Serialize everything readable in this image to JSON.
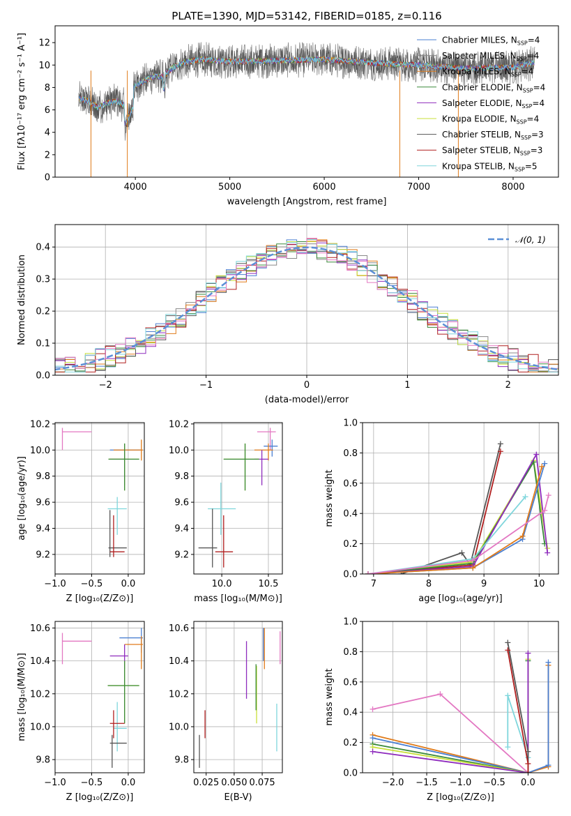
{
  "figure_title": "PLATE=1390, MJD=53142, FIBERID=0185, z=0.116",
  "colors": {
    "Chabrier MILES": "#4a7fd1",
    "Salpeter MILES": "#888888",
    "Kroupa MILES": "#e07b1a",
    "Chabrier ELODIE": "#3a8a3a",
    "Salpeter ELODIE": "#8e2bbd",
    "Kroupa ELODIE": "#c8df3a",
    "Chabrier STELIB": "#555555",
    "Salpeter STELIB": "#b01e1e",
    "Kroupa STELIB": "#7fd6dc",
    "pink": "#e377c2",
    "normal": "#5b8fd6"
  },
  "chart_data": [
    {
      "type": "line",
      "id": "spectrum",
      "title": "PLATE=1390, MJD=53142, FIBERID=0185, z=0.116",
      "xlabel": "wavelength [Angstrom, rest frame]",
      "ylabel": "Flux [fλ10⁻¹⁷ erg cm⁻² s⁻¹ A⁻¹]",
      "xlim": [
        3150,
        8480
      ],
      "ylim": [
        0,
        13.5
      ],
      "xticks": [
        4000,
        5000,
        6000,
        7000,
        8000
      ],
      "yticks": [
        0,
        2,
        4,
        6,
        8,
        10,
        12
      ],
      "grid": false,
      "legend": "right",
      "legend_entries": [
        {
          "name": "Chabrier MILES",
          "nssp": "4"
        },
        {
          "name": "Salpeter MILES",
          "nssp": "4"
        },
        {
          "name": "Kroupa MILES",
          "nssp": "4"
        },
        {
          "name": "Chabrier ELODIE",
          "nssp": "4"
        },
        {
          "name": "Salpeter ELODIE",
          "nssp": "4"
        },
        {
          "name": "Kroupa ELODIE",
          "nssp": "4"
        },
        {
          "name": "Chabrier STELIB",
          "nssp": "3"
        },
        {
          "name": "Salpeter STELIB",
          "nssp": "3"
        },
        {
          "name": "Kroupa STELIB",
          "nssp": "5"
        }
      ],
      "continuum": {
        "x": [
          3400,
          3500,
          3600,
          3700,
          3800,
          3900,
          4000,
          4100,
          4200,
          4300,
          4400,
          4500,
          4700,
          5000,
          5500,
          6000,
          6500,
          7000,
          7500,
          8000,
          8200
        ],
        "y": [
          7.0,
          6.8,
          6.2,
          6.6,
          6.8,
          6.3,
          8.2,
          8.6,
          9.0,
          9.0,
          9.8,
          10.2,
          10.5,
          10.3,
          10.4,
          10.5,
          10.2,
          10.0,
          9.7,
          9.8,
          10.2
        ]
      },
      "spikes": [
        {
          "x": 3530,
          "y": 0
        },
        {
          "x": 3915,
          "y": 0
        },
        {
          "x": 6800,
          "y": 0
        },
        {
          "x": 7420,
          "y": 0
        }
      ]
    },
    {
      "type": "histogram",
      "id": "residuals",
      "xlabel": "(data-model)/error",
      "ylabel": "Normed distribution",
      "xlim": [
        -2.5,
        2.5
      ],
      "ylim": [
        0,
        0.47
      ],
      "xticks": [
        -2,
        -1,
        0,
        1,
        2
      ],
      "yticks": [
        0.0,
        0.1,
        0.2,
        0.3,
        0.4
      ],
      "grid": true,
      "legend": "top-right",
      "reference_label": "𝒩(0, 1)",
      "bin_width": 0.1
    },
    {
      "type": "scatter",
      "id": "age_vs_Z",
      "xlabel": "Z [log₁₀(Z/Z⊙)]",
      "ylabel": "age  [log₁₀(age/yr)]",
      "xlim": [
        -1.0,
        0.22
      ],
      "ylim": [
        9.05,
        10.21
      ],
      "xticks": [
        -1.0,
        -0.5,
        0.0
      ],
      "yticks": [
        9.2,
        9.4,
        9.6,
        9.8,
        10.0,
        10.2
      ],
      "grid": true,
      "points": [
        {
          "c": "pink",
          "x": -0.9,
          "y": 10.14,
          "xe": [
            -0.9,
            -0.5
          ],
          "ye": [
            10.0,
            10.17
          ]
        },
        {
          "c": "Chabrier MILES",
          "x": -0.05,
          "y": 10.0,
          "xe": [
            -0.25,
            0.18
          ],
          "ye": [
            9.95,
            10.05
          ]
        },
        {
          "c": "Kroupa MILES",
          "x": 0.18,
          "y": 10.0,
          "xe": [
            -0.2,
            0.2
          ],
          "ye": [
            9.92,
            10.08
          ]
        },
        {
          "c": "Salpeter ELODIE",
          "x": -0.05,
          "y": 9.93,
          "xe": [
            -0.25,
            0.0
          ],
          "ye": [
            9.73,
            10.0
          ]
        },
        {
          "c": "Kroupa ELODIE",
          "x": -0.05,
          "y": 9.93,
          "xe": [
            -0.27,
            0.15
          ],
          "ye": [
            9.69,
            10.05
          ]
        },
        {
          "c": "Chabrier ELODIE",
          "x": -0.05,
          "y": 9.93,
          "xe": [
            -0.27,
            0.15
          ],
          "ye": [
            9.69,
            10.05
          ]
        },
        {
          "c": "Kroupa STELIB",
          "x": -0.15,
          "y": 9.55,
          "xe": [
            -0.28,
            -0.02
          ],
          "ye": [
            9.35,
            9.64
          ]
        },
        {
          "c": "Chabrier STELIB",
          "x": -0.25,
          "y": 9.25,
          "xe": [
            -0.27,
            -0.02
          ],
          "ye": [
            9.18,
            9.54
          ]
        },
        {
          "c": "Salpeter STELIB",
          "x": -0.2,
          "y": 9.22,
          "xe": [
            -0.25,
            -0.05
          ],
          "ye": [
            9.18,
            9.5
          ]
        }
      ]
    },
    {
      "type": "scatter",
      "id": "age_vs_mass",
      "xlabel": "mass [log₁₀(M/M⊙)]",
      "ylabel": "",
      "xlim": [
        9.7,
        10.65
      ],
      "ylim": [
        9.05,
        10.21
      ],
      "xticks": [
        10.0,
        10.5
      ],
      "yticks": [
        9.2,
        9.4,
        9.6,
        9.8,
        10.0,
        10.2
      ],
      "grid": true,
      "points": [
        {
          "c": "pink",
          "x": 10.52,
          "y": 10.14,
          "xe": [
            10.38,
            10.58
          ],
          "ye": [
            10.0,
            10.17
          ]
        },
        {
          "c": "Chabrier MILES",
          "x": 10.54,
          "y": 10.03,
          "xe": [
            10.45,
            10.6
          ],
          "ye": [
            9.95,
            10.08
          ]
        },
        {
          "c": "Kroupa MILES",
          "x": 10.5,
          "y": 10.0,
          "xe": [
            10.35,
            10.55
          ],
          "ye": [
            9.92,
            10.05
          ]
        },
        {
          "c": "Salpeter ELODIE",
          "x": 10.43,
          "y": 9.93,
          "xe": [
            10.35,
            10.5
          ],
          "ye": [
            9.73,
            10.0
          ]
        },
        {
          "c": "Kroupa ELODIE",
          "x": 10.25,
          "y": 9.93,
          "xe": [
            10.02,
            10.4
          ],
          "ye": [
            9.69,
            10.05
          ]
        },
        {
          "c": "Chabrier ELODIE",
          "x": 10.25,
          "y": 9.93,
          "xe": [
            10.02,
            10.4
          ],
          "ye": [
            9.69,
            10.05
          ]
        },
        {
          "c": "Kroupa STELIB",
          "x": 9.99,
          "y": 9.55,
          "xe": [
            9.85,
            10.15
          ],
          "ye": [
            9.35,
            9.75
          ]
        },
        {
          "c": "Chabrier STELIB",
          "x": 9.9,
          "y": 9.25,
          "xe": [
            9.75,
            9.95
          ],
          "ye": [
            9.1,
            9.55
          ]
        },
        {
          "c": "Salpeter STELIB",
          "x": 10.02,
          "y": 9.22,
          "xe": [
            9.93,
            10.12
          ],
          "ye": [
            9.1,
            9.5
          ]
        }
      ]
    },
    {
      "type": "line",
      "id": "massweight_vs_age",
      "xlabel": "age  [log₁₀(age/yr)]",
      "ylabel": "mass weight",
      "xlim": [
        6.8,
        10.35
      ],
      "ylim": [
        0.0,
        1.0
      ],
      "xticks": [
        7,
        8,
        9,
        10
      ],
      "yticks": [
        0.0,
        0.2,
        0.4,
        0.6,
        0.8,
        1.0
      ],
      "grid": true,
      "series": [
        {
          "c": "Chabrier STELIB",
          "x": [
            7.5,
            8.6,
            8.75,
            9.3
          ],
          "y": [
            0.0,
            0.14,
            0.06,
            0.86
          ]
        },
        {
          "c": "Salpeter STELIB",
          "x": [
            6.9,
            8.8,
            9.3
          ],
          "y": [
            0.0,
            0.06,
            0.81
          ]
        },
        {
          "c": "Kroupa ELODIE",
          "x": [
            6.9,
            8.8,
            9.9,
            10.15
          ],
          "y": [
            0.0,
            0.08,
            0.75,
            0.17
          ]
        },
        {
          "c": "Chabrier ELODIE",
          "x": [
            6.9,
            8.8,
            9.9,
            10.1
          ],
          "y": [
            0.0,
            0.07,
            0.74,
            0.2
          ]
        },
        {
          "c": "Salpeter ELODIE",
          "x": [
            6.9,
            8.8,
            9.95,
            10.15
          ],
          "y": [
            0.0,
            0.05,
            0.79,
            0.14
          ]
        },
        {
          "c": "Kroupa STELIB",
          "x": [
            6.9,
            8.8,
            9.75
          ],
          "y": [
            0.0,
            0.1,
            0.51
          ]
        },
        {
          "c": "Chabrier MILES",
          "x": [
            6.9,
            8.8,
            9.7,
            10.1
          ],
          "y": [
            0.0,
            0.04,
            0.23,
            0.73
          ]
        },
        {
          "c": "Kroupa MILES",
          "x": [
            6.9,
            8.8,
            9.7,
            10.05
          ],
          "y": [
            0.0,
            0.04,
            0.25,
            0.71
          ]
        },
        {
          "c": "pink",
          "x": [
            6.9,
            8.8,
            10.1,
            10.17
          ],
          "y": [
            0.0,
            0.09,
            0.42,
            0.52
          ]
        }
      ]
    },
    {
      "type": "scatter",
      "id": "mass_vs_Z",
      "xlabel": "Z [log₁₀(Z/Z⊙)]",
      "ylabel": "mass [log₁₀(M/M⊙)]",
      "xlim": [
        -1.0,
        0.22
      ],
      "ylim": [
        9.72,
        10.64
      ],
      "xticks": [
        -1.0,
        -0.5,
        0.0
      ],
      "yticks": [
        9.8,
        10.0,
        10.2,
        10.4,
        10.6
      ],
      "grid": true,
      "points": [
        {
          "c": "pink",
          "x": -0.9,
          "y": 10.52,
          "xe": [
            -0.9,
            -0.5
          ],
          "ye": [
            10.38,
            10.57
          ]
        },
        {
          "c": "Chabrier MILES",
          "x": 0.18,
          "y": 10.54,
          "xe": [
            -0.12,
            0.2
          ],
          "ye": [
            10.45,
            10.6
          ]
        },
        {
          "c": "Kroupa MILES",
          "x": 0.18,
          "y": 10.5,
          "xe": [
            -0.05,
            0.2
          ],
          "ye": [
            10.35,
            10.55
          ]
        },
        {
          "c": "Salpeter ELODIE",
          "x": -0.05,
          "y": 10.43,
          "xe": [
            -0.25,
            0.0
          ],
          "ye": [
            10.35,
            10.5
          ]
        },
        {
          "c": "Kroupa ELODIE",
          "x": -0.05,
          "y": 10.25,
          "xe": [
            -0.28,
            0.15
          ],
          "ye": [
            10.02,
            10.4
          ]
        },
        {
          "c": "Chabrier ELODIE",
          "x": -0.05,
          "y": 10.25,
          "xe": [
            -0.28,
            0.15
          ],
          "ye": [
            10.02,
            10.4
          ]
        },
        {
          "c": "Kroupa STELIB",
          "x": -0.15,
          "y": 9.99,
          "xe": [
            -0.2,
            -0.02
          ],
          "ye": [
            9.85,
            10.15
          ]
        },
        {
          "c": "Salpeter STELIB",
          "x": -0.2,
          "y": 10.02,
          "xe": [
            -0.25,
            -0.05
          ],
          "ye": [
            9.93,
            10.1
          ]
        },
        {
          "c": "Chabrier STELIB",
          "x": -0.22,
          "y": 9.9,
          "xe": [
            -0.25,
            -0.02
          ],
          "ye": [
            9.75,
            9.95
          ]
        }
      ]
    },
    {
      "type": "scatter",
      "id": "mass_vs_EBV",
      "xlabel": "E(B-V)",
      "ylabel": "",
      "xlim": [
        0.014,
        0.093
      ],
      "ylim": [
        9.72,
        10.64
      ],
      "xticks": [
        0.025,
        0.05,
        0.075
      ],
      "xticklabels": [
        "0.025",
        "0.050",
        "0.075"
      ],
      "yticks": [
        9.8,
        10.0,
        10.2,
        10.4,
        10.6
      ],
      "grid": true,
      "points": [
        {
          "c": "Chabrier STELIB",
          "x": 0.019,
          "ye": [
            9.75,
            9.95
          ]
        },
        {
          "c": "Salpeter STELIB",
          "x": 0.024,
          "ye": [
            9.93,
            10.1
          ]
        },
        {
          "c": "Salpeter ELODIE",
          "x": 0.061,
          "ye": [
            10.17,
            10.52
          ]
        },
        {
          "c": "Kroupa ELODIE",
          "x": 0.07,
          "ye": [
            10.02,
            10.37
          ]
        },
        {
          "c": "Chabrier ELODIE",
          "x": 0.0695,
          "ye": [
            10.1,
            10.38
          ]
        },
        {
          "c": "Chabrier MILES",
          "x": 0.076,
          "ye": [
            10.4,
            10.6
          ]
        },
        {
          "c": "Kroupa MILES",
          "x": 0.077,
          "ye": [
            10.35,
            10.6
          ]
        },
        {
          "c": "Kroupa STELIB",
          "x": 0.088,
          "ye": [
            9.85,
            10.14
          ]
        },
        {
          "c": "pink",
          "x": 0.091,
          "ye": [
            10.38,
            10.58
          ]
        }
      ]
    },
    {
      "type": "line",
      "id": "massweight_vs_Z",
      "xlabel": "Z [log₁₀(Z/Z⊙)]",
      "ylabel": "mass weight",
      "xlim": [
        -2.45,
        0.45
      ],
      "ylim": [
        0.0,
        1.0
      ],
      "xticks": [
        -2.0,
        -1.5,
        -1.0,
        -0.5,
        0.0
      ],
      "yticks": [
        0.0,
        0.2,
        0.4,
        0.6,
        0.8,
        1.0
      ],
      "grid": true,
      "series": [
        {
          "c": "pink",
          "x": [
            -2.3,
            -1.3,
            0.0
          ],
          "y": [
            0.42,
            0.52,
            0.0
          ]
        },
        {
          "c": "Kroupa MILES",
          "x": [
            -2.3,
            0.0,
            0.3,
            0.3
          ],
          "y": [
            0.25,
            0.0,
            0.04,
            0.71
          ]
        },
        {
          "c": "Chabrier MILES",
          "x": [
            -2.3,
            0.0,
            0.3,
            0.3
          ],
          "y": [
            0.23,
            0.0,
            0.05,
            0.73
          ]
        },
        {
          "c": "Chabrier ELODIE",
          "x": [
            -2.3,
            0.0,
            0.0
          ],
          "y": [
            0.19,
            0.0,
            0.74
          ]
        },
        {
          "c": "Kroupa ELODIE",
          "x": [
            -2.3,
            0.0,
            0.0
          ],
          "y": [
            0.17,
            0.0,
            0.75
          ]
        },
        {
          "c": "Salpeter ELODIE",
          "x": [
            -2.3,
            0.0,
            0.0
          ],
          "y": [
            0.14,
            0.0,
            0.79
          ]
        },
        {
          "c": "Kroupa STELIB",
          "x": [
            -0.3,
            -0.3,
            0.0,
            0.0
          ],
          "y": [
            0.17,
            0.51,
            0.1,
            0.0
          ]
        },
        {
          "c": "Chabrier STELIB",
          "x": [
            -0.3,
            0.0,
            0.0
          ],
          "y": [
            0.86,
            0.14,
            0.0
          ]
        },
        {
          "c": "Salpeter STELIB",
          "x": [
            -0.3,
            0.0,
            0.0
          ],
          "y": [
            0.81,
            0.06,
            0.0
          ]
        }
      ]
    }
  ]
}
